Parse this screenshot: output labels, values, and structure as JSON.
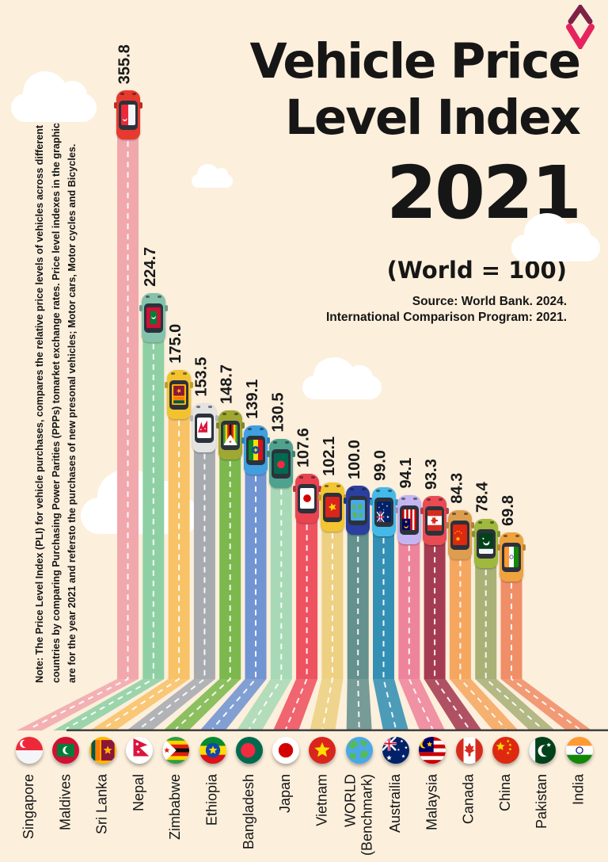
{
  "page": {
    "background_color": "#fcefdc",
    "baseline_color": "#3b3b3b"
  },
  "logo": {
    "name": "chevron-brand-logo",
    "top_chevron_color": "#7e2147",
    "bottom_chevron_color": "#e5245f"
  },
  "header": {
    "title_line1": "Vehicle Price",
    "title_line2": "Level Index",
    "year": "2021",
    "subtitle": "(World = 100)",
    "source_line1": "Source: World Bank. 2024.",
    "source_line2": "International Comparison Program: 2021."
  },
  "note": {
    "line1": "Note: The Price Level Index (PLI) for vehicle purchases, compares the relative price levels of vehicles across different",
    "line2": "countries by comparing Purchasing Power Parities (PPPs) tomarket exchange rates. Price level indexes in the graphic",
    "line3": "are for the year 2021 and refersto the purchases of new presonal vehicles; Motor cars, Motor cycles and Bicycles."
  },
  "chart_data": {
    "type": "bar",
    "title": "Vehicle Price Level Index 2021",
    "subtitle": "(World = 100)",
    "unit": "price level index, World = 100",
    "orientation": "vertical",
    "categories": [
      "Singapore",
      "Maldives",
      "Sri Lanka",
      "Nepal",
      "Zimbabwe",
      "Ethiopia",
      "Bangladesh",
      "Japan",
      "Vietnam",
      "WORLD (Benchmark)",
      "Austrailia",
      "Malaysia",
      "Canada",
      "China",
      "Pakistan",
      "India"
    ],
    "values": [
      355.8,
      224.7,
      175.0,
      153.5,
      148.7,
      139.1,
      130.5,
      107.6,
      102.1,
      100.0,
      99.0,
      94.1,
      93.3,
      84.3,
      78.4,
      69.8
    ],
    "items": [
      {
        "country": "Singapore",
        "value": 355.8,
        "bar_color": "#f1a8ad",
        "car_color": "#e8392e",
        "flag": [
          {
            "t": "hs",
            "colors": [
              "#ed2939",
              "#f4f5f8"
            ]
          },
          {
            "t": "crescent",
            "cx": 0.3,
            "cy": 0.26,
            "r": 0.15,
            "c": "#ffffff",
            "cv": "#ed2939"
          }
        ]
      },
      {
        "country": "Maldives",
        "value": 224.7,
        "bar_color": "#8ed0a4",
        "car_color": "#85c2ab",
        "flag": [
          {
            "t": "bg",
            "c": "#d21034"
          },
          {
            "t": "rect",
            "x": 0.18,
            "y": 0.26,
            "w": 0.64,
            "h": 0.48,
            "c": "#007e3a"
          },
          {
            "t": "crescent",
            "cx": 0.54,
            "cy": 0.5,
            "r": 0.15,
            "c": "#ffffff",
            "cv": "#007e3a"
          }
        ]
      },
      {
        "country": "Sri Lanka",
        "value": 175.0,
        "bar_color": "#f8c267",
        "car_color": "#f3c32f",
        "flag": [
          {
            "t": "bg",
            "c": "#ffb700"
          },
          {
            "t": "rect",
            "x": 0.07,
            "y": 0.12,
            "w": 0.15,
            "h": 0.76,
            "c": "#00534e"
          },
          {
            "t": "rect",
            "x": 0.24,
            "y": 0.12,
            "w": 0.15,
            "h": 0.76,
            "c": "#ff7900"
          },
          {
            "t": "rect",
            "x": 0.44,
            "y": 0.12,
            "w": 0.49,
            "h": 0.76,
            "c": "#8d153a"
          },
          {
            "t": "star",
            "cx": 0.68,
            "cy": 0.5,
            "r": 0.17,
            "c": "#ffb700"
          }
        ]
      },
      {
        "country": "Nepal",
        "value": 153.5,
        "bar_color": "#a7abb0",
        "car_color": "#e3e3e1",
        "flag": [
          {
            "t": "bg",
            "c": "#ffffff"
          },
          {
            "t": "poly",
            "pts": [
              [
                0.28,
                0.06
              ],
              [
                0.8,
                0.3
              ],
              [
                0.52,
                0.4
              ],
              [
                0.86,
                0.72
              ],
              [
                0.28,
                0.72
              ]
            ],
            "c": "#dc143c"
          },
          {
            "t": "circle",
            "cx": 0.42,
            "cy": 0.27,
            "r": 0.05,
            "c": "#ffffff"
          },
          {
            "t": "star",
            "cx": 0.46,
            "cy": 0.56,
            "r": 0.07,
            "c": "#ffffff"
          }
        ]
      },
      {
        "country": "Zimbabwe",
        "value": 148.7,
        "bar_color": "#7cb84d",
        "car_color": "#9ea832",
        "flag": [
          {
            "t": "hs",
            "colors": [
              "#319e3f",
              "#ffd200",
              "#de2010",
              "#0d0d0d",
              "#de2010",
              "#ffd200",
              "#319e3f"
            ]
          },
          {
            "t": "poly",
            "pts": [
              [
                0,
                0
              ],
              [
                0.52,
                0.5
              ],
              [
                0,
                1
              ]
            ],
            "c": "#ffffff"
          },
          {
            "t": "star",
            "cx": 0.17,
            "cy": 0.5,
            "r": 0.11,
            "c": "#de2010"
          }
        ]
      },
      {
        "country": "Ethiopia",
        "value": 139.1,
        "bar_color": "#7194d2",
        "car_color": "#3f9fe0",
        "flag": [
          {
            "t": "hs",
            "colors": [
              "#078930",
              "#fcdd09",
              "#da121a"
            ]
          },
          {
            "t": "circle",
            "cx": 0.5,
            "cy": 0.5,
            "r": 0.27,
            "c": "#0f47af"
          },
          {
            "t": "star",
            "cx": 0.5,
            "cy": 0.5,
            "r": 0.17,
            "c": "#fcdd09"
          }
        ]
      },
      {
        "country": "Bangladesh",
        "value": 130.5,
        "bar_color": "#a8d9b6",
        "car_color": "#4fa28e",
        "flag": [
          {
            "t": "bg",
            "c": "#006a4e"
          },
          {
            "t": "circle",
            "cx": 0.45,
            "cy": 0.5,
            "r": 0.27,
            "c": "#f42a41"
          }
        ]
      },
      {
        "country": "Japan",
        "value": 107.6,
        "bar_color": "#ee5261",
        "car_color": "#e8434f",
        "flag": [
          {
            "t": "bg",
            "c": "#ffffff"
          },
          {
            "t": "circle",
            "cx": 0.5,
            "cy": 0.5,
            "r": 0.27,
            "c": "#d30000"
          }
        ]
      },
      {
        "country": "Vietnam",
        "value": 102.1,
        "bar_color": "#edd082",
        "car_color": "#f2c531",
        "flag": [
          {
            "t": "bg",
            "c": "#da251d"
          },
          {
            "t": "star",
            "cx": 0.5,
            "cy": 0.5,
            "r": 0.3,
            "c": "#ffde00"
          }
        ]
      },
      {
        "country": "WORLD",
        "country_line2": "(Benchmark)",
        "value": 100.0,
        "bar_color": "#64908d",
        "car_color": "#2b3f9e",
        "flag": [
          {
            "t": "bg",
            "c": "#4aa8e8"
          },
          {
            "t": "poly",
            "pts": [
              [
                0.1,
                0.25
              ],
              [
                0.35,
                0.1
              ],
              [
                0.45,
                0.3
              ],
              [
                0.3,
                0.45
              ],
              [
                0.12,
                0.4
              ]
            ],
            "c": "#58b85c"
          },
          {
            "t": "poly",
            "pts": [
              [
                0.55,
                0.08
              ],
              [
                0.8,
                0.2
              ],
              [
                0.72,
                0.38
              ],
              [
                0.55,
                0.3
              ]
            ],
            "c": "#58b85c"
          },
          {
            "t": "poly",
            "pts": [
              [
                0.6,
                0.5
              ],
              [
                0.85,
                0.55
              ],
              [
                0.75,
                0.8
              ],
              [
                0.5,
                0.75
              ]
            ],
            "c": "#58b85c"
          },
          {
            "t": "poly",
            "pts": [
              [
                0.15,
                0.6
              ],
              [
                0.38,
                0.62
              ],
              [
                0.35,
                0.85
              ],
              [
                0.15,
                0.78
              ]
            ],
            "c": "#58b85c"
          }
        ]
      },
      {
        "country": "Austrailia",
        "value": 99.0,
        "bar_color": "#3390b4",
        "car_color": "#45b9e8",
        "flag": [
          {
            "t": "bg",
            "c": "#012169"
          },
          {
            "t": "line",
            "x1": 0,
            "y1": 0,
            "x2": 0.5,
            "y2": 0.5,
            "c": "#ffffff",
            "w": 0.07
          },
          {
            "t": "line",
            "x1": 0.5,
            "y1": 0,
            "x2": 0,
            "y2": 0.5,
            "c": "#ffffff",
            "w": 0.07
          },
          {
            "t": "line",
            "x1": 0.25,
            "y1": 0,
            "x2": 0.25,
            "y2": 0.52,
            "c": "#ffffff",
            "w": 0.1
          },
          {
            "t": "line",
            "x1": 0,
            "y1": 0.25,
            "x2": 0.52,
            "y2": 0.25,
            "c": "#ffffff",
            "w": 0.1
          },
          {
            "t": "line",
            "x1": 0.25,
            "y1": 0,
            "x2": 0.25,
            "y2": 0.52,
            "c": "#e4002b",
            "w": 0.05
          },
          {
            "t": "line",
            "x1": 0,
            "y1": 0.25,
            "x2": 0.52,
            "y2": 0.25,
            "c": "#e4002b",
            "w": 0.05
          },
          {
            "t": "star",
            "cx": 0.25,
            "cy": 0.78,
            "r": 0.1,
            "c": "#ffffff"
          },
          {
            "t": "star",
            "cx": 0.72,
            "cy": 0.16,
            "r": 0.06,
            "c": "#ffffff"
          },
          {
            "t": "star",
            "cx": 0.88,
            "cy": 0.4,
            "r": 0.06,
            "c": "#ffffff"
          },
          {
            "t": "star",
            "cx": 0.78,
            "cy": 0.72,
            "r": 0.07,
            "c": "#ffffff"
          },
          {
            "t": "star",
            "cx": 0.6,
            "cy": 0.48,
            "r": 0.05,
            "c": "#ffffff"
          }
        ]
      },
      {
        "country": "Malaysia",
        "value": 94.1,
        "bar_color": "#ee849c",
        "car_color": "#c3b4f2",
        "flag": [
          {
            "t": "hs",
            "colors": [
              "#cc0001",
              "#ffffff",
              "#cc0001",
              "#ffffff",
              "#cc0001",
              "#ffffff",
              "#cc0001"
            ]
          },
          {
            "t": "rect",
            "x": 0,
            "y": 0,
            "w": 0.55,
            "h": 0.57,
            "c": "#010066"
          },
          {
            "t": "crescent",
            "cx": 0.19,
            "cy": 0.28,
            "r": 0.15,
            "c": "#ffcc00",
            "cv": "#010066"
          },
          {
            "t": "star",
            "cx": 0.4,
            "cy": 0.28,
            "r": 0.11,
            "c": "#ffcc00"
          }
        ]
      },
      {
        "country": "Canada",
        "value": 93.3,
        "bar_color": "#a53b52",
        "car_color": "#e84b52",
        "flag": [
          {
            "t": "bg",
            "c": "#ffffff"
          },
          {
            "t": "rect",
            "x": 0,
            "y": 0,
            "w": 0.28,
            "h": 1,
            "c": "#d52b1e"
          },
          {
            "t": "rect",
            "x": 0.72,
            "y": 0,
            "w": 0.28,
            "h": 1,
            "c": "#d52b1e"
          },
          {
            "t": "poly",
            "pts": [
              [
                0.5,
                0.22
              ],
              [
                0.57,
                0.36
              ],
              [
                0.66,
                0.33
              ],
              [
                0.62,
                0.47
              ],
              [
                0.7,
                0.5
              ],
              [
                0.54,
                0.6
              ],
              [
                0.54,
                0.72
              ],
              [
                0.46,
                0.72
              ],
              [
                0.46,
                0.6
              ],
              [
                0.3,
                0.5
              ],
              [
                0.38,
                0.47
              ],
              [
                0.34,
                0.33
              ],
              [
                0.43,
                0.36
              ]
            ],
            "c": "#d52b1e"
          }
        ]
      },
      {
        "country": "China",
        "value": 84.3,
        "bar_color": "#f5a760",
        "car_color": "#de9e4f",
        "flag": [
          {
            "t": "bg",
            "c": "#de2910"
          },
          {
            "t": "star",
            "cx": 0.3,
            "cy": 0.36,
            "r": 0.17,
            "c": "#ffde00"
          },
          {
            "t": "star",
            "cx": 0.58,
            "cy": 0.16,
            "r": 0.06,
            "c": "#ffde00"
          },
          {
            "t": "star",
            "cx": 0.66,
            "cy": 0.3,
            "r": 0.06,
            "c": "#ffde00"
          },
          {
            "t": "star",
            "cx": 0.66,
            "cy": 0.46,
            "r": 0.06,
            "c": "#ffde00"
          },
          {
            "t": "star",
            "cx": 0.58,
            "cy": 0.6,
            "r": 0.06,
            "c": "#ffde00"
          }
        ]
      },
      {
        "country": "Pakistan",
        "value": 78.4,
        "bar_color": "#a9b177",
        "car_color": "#9fb93d",
        "flag": [
          {
            "t": "bg",
            "c": "#01411c"
          },
          {
            "t": "rect",
            "x": 0,
            "y": 0,
            "w": 0.24,
            "h": 1,
            "c": "#f6f6f6"
          },
          {
            "t": "crescent",
            "cx": 0.56,
            "cy": 0.52,
            "r": 0.22,
            "c": "#ffffff",
            "cv": "#01411c"
          },
          {
            "t": "star",
            "cx": 0.74,
            "cy": 0.3,
            "r": 0.09,
            "c": "#ffffff"
          }
        ]
      },
      {
        "country": "India",
        "value": 69.8,
        "bar_color": "#f08e67",
        "car_color": "#efa33e",
        "flag": [
          {
            "t": "hs",
            "colors": [
              "#ff9933",
              "#ffffff",
              "#138808"
            ]
          },
          {
            "t": "ring",
            "cx": 0.5,
            "cy": 0.5,
            "r": 0.12,
            "c": "#000088",
            "w": 0.035
          }
        ]
      }
    ]
  }
}
